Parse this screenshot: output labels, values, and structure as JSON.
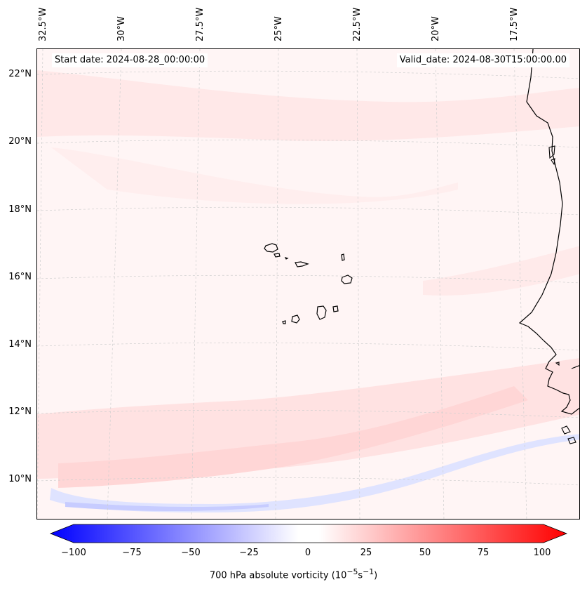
{
  "header": {
    "start_date": "Start date: 2024-08-28_00:00:00",
    "valid_date": "Valid_date: 2024-08-30T15:00:00.00"
  },
  "map": {
    "lat_labels": [
      "22°N",
      "20°N",
      "18°N",
      "16°N",
      "14°N",
      "12°N",
      "10°N"
    ],
    "lon_labels": [
      "32.5°W",
      "30°W",
      "27.5°W",
      "25°W",
      "22.5°W",
      "20°W",
      "17.5°W"
    ],
    "extent": {
      "lon_min": -32.5,
      "lon_max": -15.5,
      "lat_min": 8.9,
      "lat_max": 22.8
    },
    "feature_names": [
      "cape-verde-islands",
      "west-africa-coastline"
    ]
  },
  "colorbar": {
    "ticks": [
      "−100",
      "−75",
      "−50",
      "−25",
      "0",
      "25",
      "50",
      "75",
      "100"
    ],
    "label": "700 hPa absolute vorticity (10",
    "label_exp1": "−5",
    "label_mid": "s",
    "label_exp2": "−1",
    "label_end": ")",
    "range": [
      -100,
      100
    ],
    "negative_color": "#0000ff",
    "positive_color": "#ff0000"
  }
}
